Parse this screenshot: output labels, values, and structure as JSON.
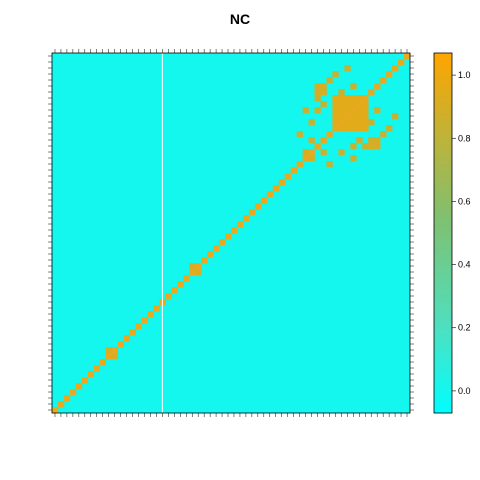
{
  "chart_data": {
    "type": "heatmap",
    "title": "NC",
    "xlabel": "",
    "ylabel": "",
    "matrix_size": 60,
    "value_range": [
      -0.07,
      1.07
    ],
    "background_value": 0,
    "diagonal_value": 1.0,
    "colors": {
      "low": "#00FFFF",
      "mid": "#4DE0C0",
      "mid2": "#80C070",
      "high": "#FFA500",
      "diag": "#E8A820",
      "gap_line": "#FFFFFF",
      "frame": "#000000"
    },
    "colorbar": {
      "ticks": [
        0.0,
        0.2,
        0.4,
        0.6,
        0.8,
        1.0
      ],
      "tick_labels": [
        "0.0",
        "0.2",
        "0.4",
        "0.6",
        "0.8",
        "1.0"
      ]
    },
    "gap_index": 18,
    "blocks": [
      {
        "i0": 47,
        "i1": 52,
        "j0": 47,
        "j1": 52,
        "value": 0.95
      },
      {
        "i0": 44,
        "i1": 45,
        "j0": 53,
        "j1": 54,
        "value": 0.9
      },
      {
        "i0": 53,
        "i1": 54,
        "j0": 44,
        "j1": 45,
        "value": 0.9
      },
      {
        "i0": 42,
        "i1": 43,
        "j0": 42,
        "j1": 43,
        "value": 0.9
      },
      {
        "i0": 9,
        "i1": 10,
        "j0": 9,
        "j1": 10,
        "value": 0.9
      },
      {
        "i0": 23,
        "i1": 24,
        "j0": 23,
        "j1": 24,
        "value": 0.9
      }
    ],
    "scatter_cells": [
      [
        55,
        46
      ],
      [
        46,
        55
      ],
      [
        56,
        47
      ],
      [
        47,
        56
      ],
      [
        50,
        44
      ],
      [
        44,
        50
      ],
      [
        51,
        45
      ],
      [
        45,
        51
      ],
      [
        52,
        44
      ],
      [
        44,
        52
      ],
      [
        46,
        41
      ],
      [
        41,
        46
      ],
      [
        48,
        43
      ],
      [
        43,
        48
      ],
      [
        50,
        42
      ],
      [
        42,
        50
      ],
      [
        53,
        48
      ],
      [
        48,
        53
      ],
      [
        54,
        50
      ],
      [
        50,
        54
      ],
      [
        57,
        49
      ],
      [
        49,
        57
      ],
      [
        45,
        43
      ],
      [
        43,
        45
      ]
    ]
  }
}
